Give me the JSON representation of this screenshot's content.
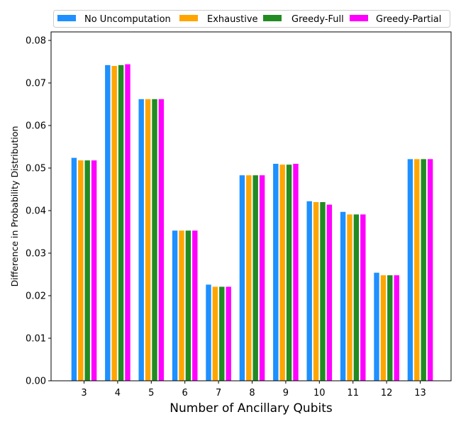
{
  "chart_data": {
    "type": "bar",
    "title": "",
    "xlabel": "Number of Ancillary Qubits",
    "ylabel": "Difference in Probability Distribution",
    "categories": [
      "3",
      "4",
      "5",
      "6",
      "7",
      "8",
      "9",
      "10",
      "11",
      "12",
      "13"
    ],
    "ylim": [
      0,
      0.082
    ],
    "yticks": [
      "0.00",
      "0.01",
      "0.02",
      "0.03",
      "0.04",
      "0.05",
      "0.06",
      "0.07",
      "0.08"
    ],
    "grid": false,
    "legend_position": "top",
    "series": [
      {
        "name": "No Uncomputation",
        "color": "#1e90ff",
        "values": [
          0.0524,
          0.0742,
          0.0662,
          0.0353,
          0.0226,
          0.0483,
          0.051,
          0.0422,
          0.0397,
          0.0254,
          0.0521
        ]
      },
      {
        "name": "Exhaustive",
        "color": "#ffa500",
        "values": [
          0.0518,
          0.074,
          0.0662,
          0.0353,
          0.0221,
          0.0483,
          0.0508,
          0.042,
          0.0391,
          0.0248,
          0.0521
        ]
      },
      {
        "name": "Greedy-Full",
        "color": "#228b22",
        "values": [
          0.0518,
          0.0742,
          0.0662,
          0.0353,
          0.0221,
          0.0483,
          0.0508,
          0.042,
          0.0391,
          0.0248,
          0.0521
        ]
      },
      {
        "name": "Greedy-Partial",
        "color": "#ff00ff",
        "values": [
          0.0518,
          0.0744,
          0.0662,
          0.0353,
          0.0221,
          0.0483,
          0.051,
          0.0414,
          0.0391,
          0.0248,
          0.0521
        ]
      }
    ]
  }
}
